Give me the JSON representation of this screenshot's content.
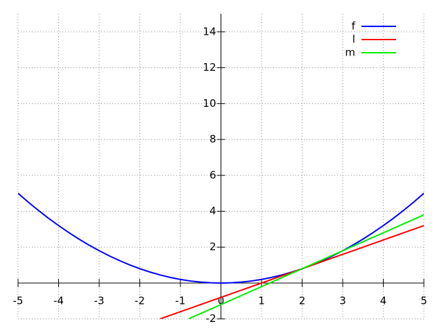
{
  "chart_data": {
    "type": "line",
    "xlim": [
      -5,
      5
    ],
    "ylim": [
      -2,
      15
    ],
    "xticks": [
      -5,
      -4,
      -3,
      -2,
      -1,
      0,
      1,
      2,
      3,
      4,
      5
    ],
    "yticks": [
      -2,
      2,
      4,
      6,
      8,
      10,
      12,
      14
    ],
    "grid": true,
    "legend": "top-right",
    "series": [
      {
        "name": "f",
        "color": "#0000ff",
        "x": [
          -5,
          -4.75,
          -4.5,
          -4.25,
          -4,
          -3.75,
          -3.5,
          -3.25,
          -3,
          -2.75,
          -2.5,
          -2.25,
          -2,
          -1.75,
          -1.5,
          -1.25,
          -1,
          -0.75,
          -0.5,
          -0.25,
          0,
          0.25,
          0.5,
          0.75,
          1,
          1.25,
          1.5,
          1.75,
          2,
          2.25,
          2.5,
          2.75,
          3,
          3.25,
          3.5,
          3.75,
          4,
          4.25,
          4.5,
          4.75,
          5
        ],
        "values": [
          5,
          4.5125,
          4.05,
          3.6125,
          3.2,
          2.8125,
          2.45,
          2.1125,
          1.8,
          1.5125,
          1.25,
          1.0125,
          0.8,
          0.6125,
          0.45,
          0.3125,
          0.2,
          0.1125,
          0.05,
          0.0125,
          0,
          0.0125,
          0.05,
          0.1125,
          0.2,
          0.3125,
          0.45,
          0.6125,
          0.8,
          1.0125,
          1.25,
          1.5125,
          1.8,
          2.1125,
          2.45,
          2.8125,
          3.2,
          3.6125,
          4.05,
          4.5125,
          5
        ]
      },
      {
        "name": "l",
        "color": "#ff0000",
        "x": [
          -1.5,
          5
        ],
        "values": [
          -2,
          3.2
        ]
      },
      {
        "name": "m",
        "color": "#00ee00",
        "x": [
          -0.8,
          5
        ],
        "values": [
          -2,
          3.8
        ]
      }
    ]
  }
}
